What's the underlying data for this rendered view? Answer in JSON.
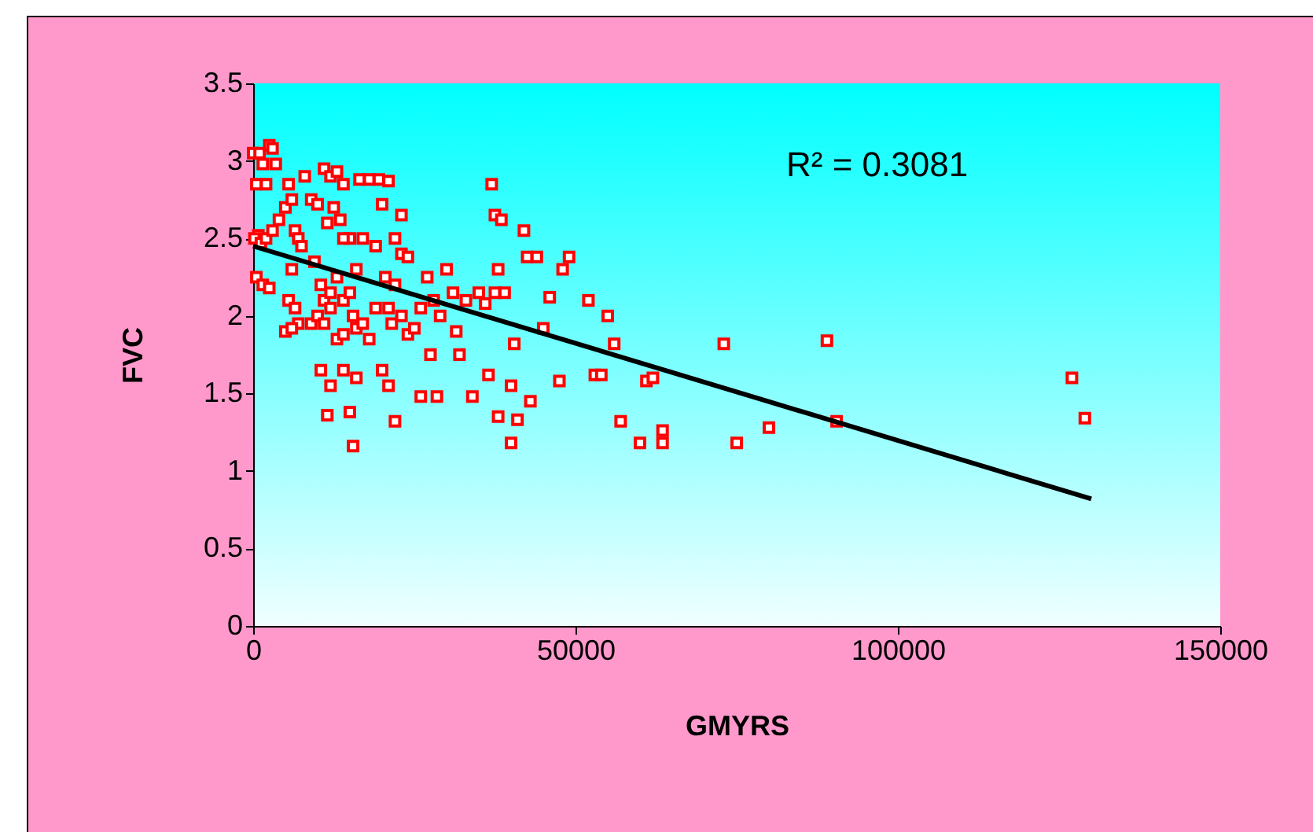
{
  "chart_data": {
    "type": "scatter",
    "xlabel": "GMYRS",
    "ylabel": "FVC",
    "annotations": [
      "R² = 0.3081"
    ],
    "xlim": [
      0,
      150000
    ],
    "xticks": [
      0,
      50000,
      100000,
      150000
    ],
    "ylim": [
      0,
      3.5
    ],
    "yticks": [
      0,
      0.5,
      1,
      1.5,
      2,
      2.5,
      3,
      3.5
    ],
    "grid": false,
    "series": [
      {
        "color": "#ff0000",
        "marker": "square",
        "x": [
          0,
          1000,
          2500,
          3000,
          1500,
          2000,
          500,
          3500,
          800,
          200,
          1200,
          2000,
          3000,
          500,
          1500,
          2500,
          4000,
          5000,
          5500,
          6000,
          6500,
          7000,
          7500,
          6000,
          5500,
          6500,
          7000,
          5000,
          6000,
          8000,
          9000,
          10000,
          11000,
          12000,
          13000,
          14000,
          12500,
          11500,
          13500,
          9500,
          10500,
          11000,
          12000,
          13000,
          14000,
          15000,
          9000,
          10000,
          11000,
          12000,
          13000,
          14000,
          15500,
          16000,
          17000,
          18000,
          10500,
          12000,
          11500,
          14000,
          15000,
          15500,
          16000,
          16500,
          18000,
          19500,
          21000,
          20000,
          19000,
          17000,
          15000,
          14000,
          16000,
          19000,
          20500,
          22000,
          23000,
          24000,
          23000,
          22000,
          21000,
          21500,
          23000,
          24000,
          25000,
          26000,
          27000,
          28000,
          29000,
          20000,
          21000,
          22000,
          26000,
          27500,
          28500,
          30000,
          31000,
          31500,
          32000,
          33000,
          34000,
          35000,
          36000,
          36500,
          37000,
          37500,
          38500,
          38000,
          39000,
          37500,
          38000,
          40000,
          40500,
          40000,
          41000,
          42000,
          42500,
          44000,
          43000,
          45000,
          46000,
          48000,
          49000,
          47500,
          52000,
          53000,
          54000,
          55000,
          56000,
          57000,
          60000,
          61000,
          62000,
          63500,
          63500,
          73000,
          75000,
          80000,
          89000,
          90500,
          127000,
          129000
        ],
        "values": [
          3.05,
          3.05,
          3.1,
          3.08,
          2.98,
          2.85,
          2.85,
          2.98,
          2.52,
          2.5,
          2.47,
          2.5,
          2.55,
          2.25,
          2.2,
          2.18,
          2.62,
          2.7,
          2.85,
          2.75,
          2.55,
          2.5,
          2.45,
          2.3,
          2.1,
          2.05,
          1.95,
          1.9,
          1.92,
          2.9,
          2.75,
          2.72,
          2.95,
          2.9,
          2.93,
          2.85,
          2.7,
          2.6,
          2.62,
          2.35,
          2.2,
          2.1,
          2.15,
          2.25,
          2.1,
          2.15,
          1.95,
          2.0,
          1.95,
          2.05,
          1.85,
          1.88,
          2.0,
          1.92,
          1.95,
          1.85,
          1.65,
          1.55,
          1.36,
          1.65,
          1.38,
          1.16,
          1.6,
          2.88,
          2.88,
          2.88,
          2.87,
          2.72,
          2.45,
          2.5,
          2.5,
          2.5,
          2.3,
          2.05,
          2.25,
          2.2,
          2.4,
          2.38,
          2.65,
          2.5,
          2.05,
          1.95,
          2.0,
          1.88,
          1.92,
          2.05,
          2.25,
          2.1,
          2.0,
          1.65,
          1.55,
          1.32,
          1.48,
          1.75,
          1.48,
          2.3,
          2.15,
          1.9,
          1.75,
          2.1,
          1.48,
          2.15,
          2.08,
          1.62,
          2.85,
          2.65,
          2.62,
          2.3,
          2.15,
          2.15,
          1.35,
          1.55,
          1.82,
          1.18,
          1.33,
          2.55,
          2.38,
          2.38,
          1.45,
          1.92,
          2.12,
          2.3,
          2.38,
          1.58,
          2.1,
          1.62,
          1.62,
          2.0,
          1.82,
          1.32,
          1.18,
          1.58,
          1.6,
          1.26,
          1.18,
          1.82,
          1.18,
          1.28,
          1.84,
          1.32,
          1.6,
          1.34
        ]
      },
      {
        "type": "line",
        "color": "#000000",
        "x": [
          0,
          130000
        ],
        "values": [
          2.45,
          0.82
        ]
      }
    ]
  }
}
